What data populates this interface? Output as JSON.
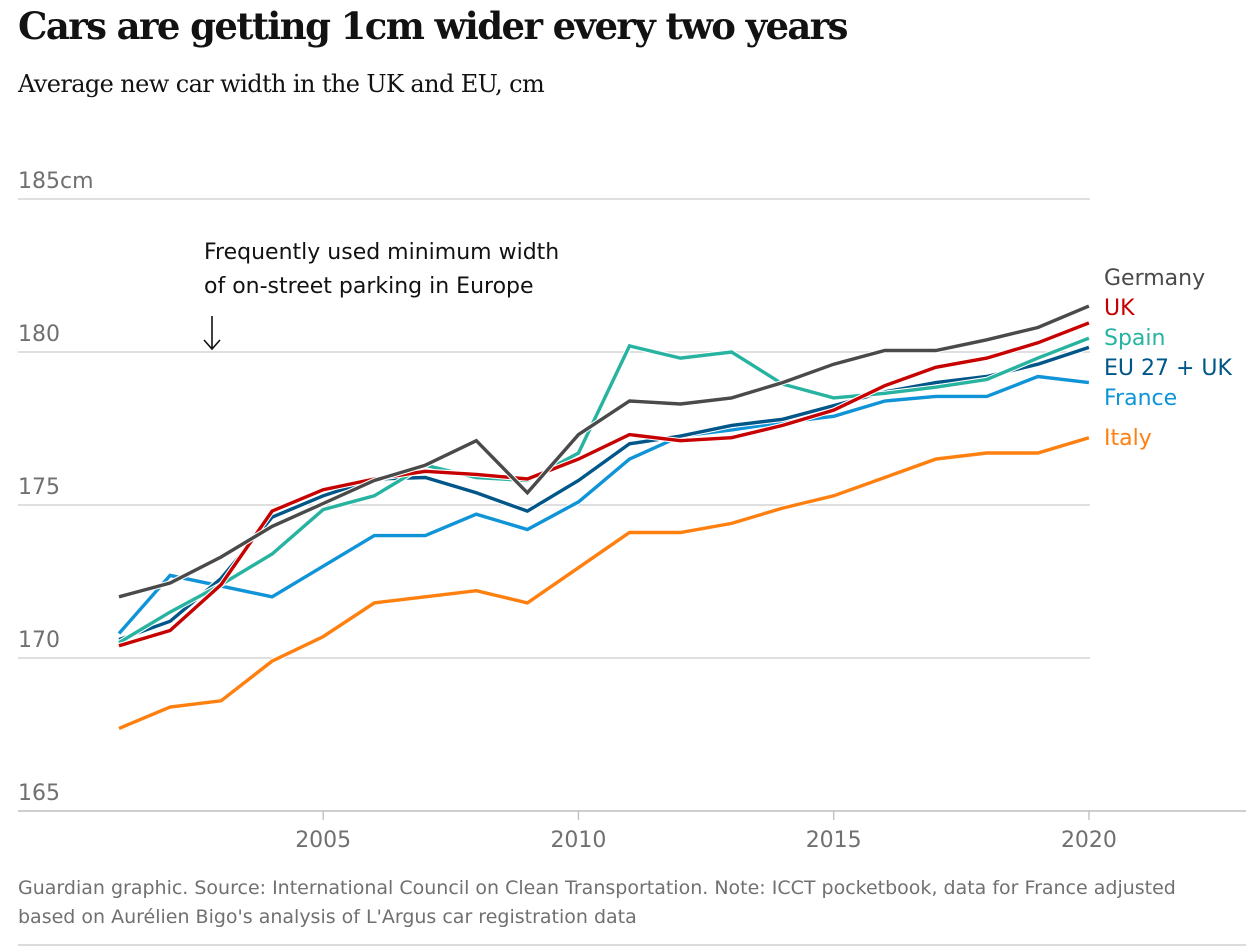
{
  "header": {
    "title": "Cars are getting 1cm wider every two years",
    "subtitle": "Average new car width in the UK and EU, cm"
  },
  "annotation": {
    "line1": "Frequently used minimum width",
    "line2": "of on-street parking in Europe",
    "arrow": "↓",
    "year": 2003
  },
  "footer": {
    "source": "Guardian graphic. Source: International Council on Clean Transportation. Note: ICCT pocketbook, data for France adjusted based on Aurélien Bigo's analysis of L'Argus car registration data"
  },
  "chart_data": {
    "type": "line",
    "title": "Cars are getting 1cm wider every two years",
    "subtitle": "Average new car width in the UK and EU, cm",
    "xlabel": "",
    "ylabel": "",
    "x": [
      2001,
      2002,
      2003,
      2004,
      2005,
      2006,
      2007,
      2008,
      2009,
      2010,
      2011,
      2012,
      2013,
      2014,
      2015,
      2016,
      2017,
      2018,
      2019,
      2020
    ],
    "xlim": [
      2001,
      2023
    ],
    "ylim": [
      165,
      185
    ],
    "xticks": [
      2005,
      2010,
      2015,
      2020
    ],
    "yticks": [
      165,
      170,
      175,
      180,
      185
    ],
    "ytick_labels": [
      "165",
      "170",
      "175",
      "180",
      "185cm"
    ],
    "grid": true,
    "legend": "right (direct labels at line ends)",
    "series": [
      {
        "name": "Italy",
        "color": "#ff7f0f",
        "values": [
          167.7,
          168.4,
          168.6,
          169.9,
          170.7,
          171.8,
          172.0,
          172.2,
          171.8,
          172.95,
          174.1,
          174.1,
          174.4,
          174.9,
          175.3,
          175.9,
          176.5,
          176.7,
          176.7,
          177.2
        ]
      },
      {
        "name": "France",
        "color": "#0f94d8",
        "values": [
          170.8,
          172.7,
          172.35,
          172.0,
          173.0,
          174.0,
          174.0,
          174.7,
          174.2,
          175.1,
          176.5,
          177.25,
          177.45,
          177.7,
          177.9,
          178.4,
          178.55,
          178.55,
          179.2,
          179.0
        ]
      },
      {
        "name": "EU 27 + UK",
        "color": "#005689",
        "values": [
          170.6,
          171.2,
          172.6,
          174.6,
          175.3,
          175.85,
          175.9,
          175.4,
          174.8,
          175.8,
          177.0,
          177.25,
          177.6,
          177.8,
          178.25,
          178.7,
          179.0,
          179.2,
          179.6,
          180.15
        ]
      },
      {
        "name": "Spain",
        "color": "#27b3a0",
        "values": [
          170.5,
          171.5,
          172.4,
          173.4,
          174.85,
          175.3,
          176.3,
          175.9,
          175.8,
          176.7,
          180.2,
          179.8,
          180.0,
          178.95,
          178.5,
          178.65,
          178.85,
          179.1,
          179.8,
          180.45
        ]
      },
      {
        "name": "UK",
        "color": "#c70000",
        "values": [
          170.4,
          170.9,
          172.4,
          174.8,
          175.5,
          175.85,
          176.1,
          176.0,
          175.85,
          176.5,
          177.3,
          177.1,
          177.2,
          177.6,
          178.1,
          178.9,
          179.5,
          179.8,
          180.3,
          180.95
        ]
      },
      {
        "name": "Germany",
        "color": "#4a4a4a",
        "values": [
          172.0,
          172.45,
          173.3,
          174.3,
          175.05,
          175.8,
          176.3,
          177.1,
          175.4,
          177.3,
          178.4,
          178.3,
          178.5,
          179.0,
          179.6,
          180.05,
          180.05,
          180.4,
          180.8,
          181.5
        ]
      }
    ],
    "legend_order": [
      "Germany",
      "UK",
      "Spain",
      "EU 27 + UK",
      "France",
      "Italy"
    ]
  }
}
